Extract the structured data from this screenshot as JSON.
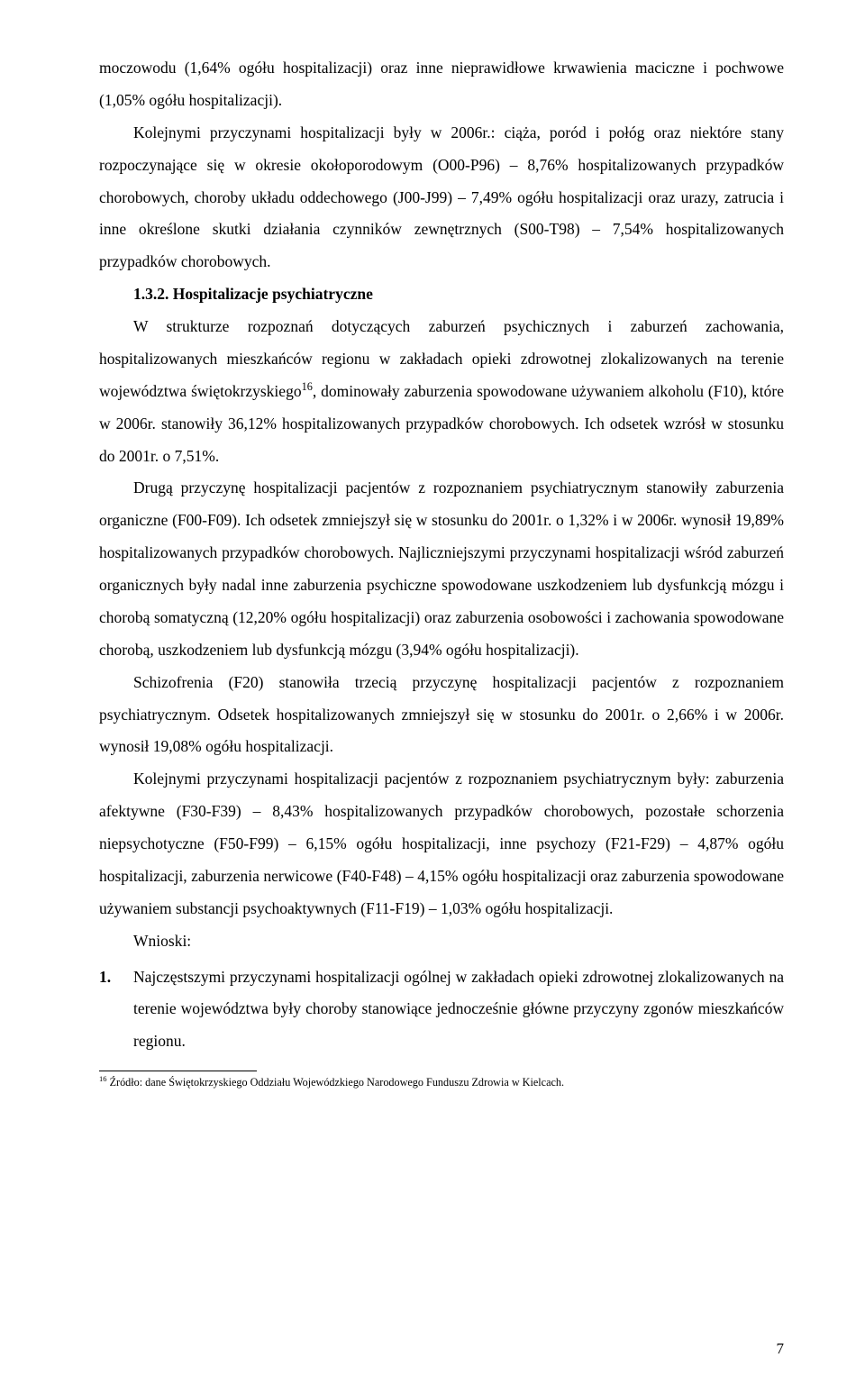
{
  "p1": "moczowodu (1,64% ogółu hospitalizacji) oraz inne nieprawidłowe krwawienia maciczne i pochwowe (1,05% ogółu hospitalizacji).",
  "p2_a": "Kolejnymi przyczynami hospitalizacji były w 2006r.: ciąża, poród i połóg oraz niektóre stany rozpoczynające się w okresie okołoporodowym (O00-P96) – 8,76% hospitalizowanych przypadków chorobowych, choroby układu oddechowego (J00-J99) – 7,49% ogółu hospitalizacji oraz urazy, zatrucia i inne określone skutki działania czynników zewnętrznych (S00-T98) – 7,54% hospitalizowanych przypadków chorobowych.",
  "heading": "1.3.2.  Hospitalizacje psychiatryczne",
  "p3_a": "W strukturze rozpoznań dotyczących zaburzeń psychicznych i zaburzeń zachowania, hospitalizowanych mieszkańców regionu w zakładach opieki zdrowotnej zlokalizowanych na terenie województwa świętokrzyskiego",
  "p3_sup": "16",
  "p3_b": ", dominowały zaburzenia spowodowane używaniem alkoholu (F10), które w 2006r. stanowiły 36,12% hospitalizowanych przypadków chorobowych. Ich odsetek wzrósł w stosunku do 2001r. o 7,51%.",
  "p4": "Drugą przyczynę hospitalizacji pacjentów z rozpoznaniem psychiatrycznym stanowiły zaburzenia organiczne (F00-F09). Ich odsetek zmniejszył się w stosunku do 2001r. o 1,32% i w 2006r. wynosił 19,89% hospitalizowanych przypadków chorobowych. Najliczniejszymi przyczynami hospitalizacji wśród zaburzeń organicznych były nadal inne zaburzenia psychiczne spowodowane uszkodzeniem lub dysfunkcją mózgu i chorobą somatyczną (12,20% ogółu hospitalizacji) oraz zaburzenia osobowości i zachowania spowodowane chorobą, uszkodzeniem lub dysfunkcją mózgu (3,94% ogółu hospitalizacji).",
  "p5": "Schizofrenia (F20) stanowiła trzecią przyczynę hospitalizacji pacjentów z rozpoznaniem psychiatrycznym. Odsetek hospitalizowanych zmniejszył się w stosunku do 2001r. o 2,66% i w 2006r. wynosił 19,08% ogółu hospitalizacji.",
  "p6": "Kolejnymi przyczynami hospitalizacji pacjentów z rozpoznaniem psychiatrycznym były: zaburzenia afektywne (F30-F39) – 8,43% hospitalizowanych przypadków chorobowych, pozostałe schorzenia niepsychotyczne (F50-F99) – 6,15% ogółu hospitalizacji, inne psychozy (F21-F29) – 4,87% ogółu hospitalizacji, zaburzenia nerwicowe (F40-F48) – 4,15% ogółu hospitalizacji oraz zaburzenia spowodowane używaniem substancji psychoaktywnych (F11-F19) – 1,03% ogółu hospitalizacji.",
  "wnioski": "Wnioski:",
  "ol1_num": "1.",
  "ol1_text": "Najczęstszymi przyczynami hospitalizacji ogólnej w zakładach opieki zdrowotnej zlokalizowanych na terenie województwa były choroby stanowiące jednocześnie główne przyczyny zgonów mieszkańców regionu.",
  "footnote_sup": "16",
  "footnote_text": " Źródło: dane Świętokrzyskiego Oddziału Wojewódzkiego Narodowego Funduszu Zdrowia w Kielcach.",
  "pagenum": "7"
}
